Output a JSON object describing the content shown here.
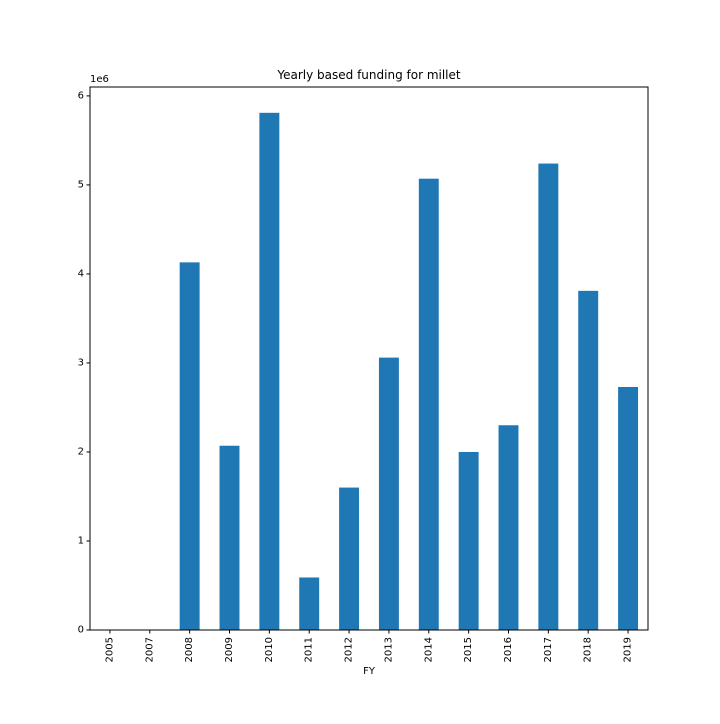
{
  "chart_data": {
    "type": "bar",
    "title": "Yearly based funding for millet",
    "xlabel": "FY",
    "ylabel": "",
    "y_offset_label": "1e6",
    "categories": [
      "2005",
      "2007",
      "2008",
      "2009",
      "2010",
      "2011",
      "2012",
      "2013",
      "2014",
      "2015",
      "2016",
      "2017",
      "2018",
      "2019"
    ],
    "values": [
      0,
      0,
      4130000,
      2070000,
      5810000,
      590000,
      1600000,
      3060000,
      5070000,
      2000000,
      2300000,
      5240000,
      3810000,
      2730000
    ],
    "ylim": [
      0,
      6100000
    ],
    "yticks": [
      0,
      1000000,
      2000000,
      3000000,
      4000000,
      5000000,
      6000000
    ],
    "ytick_labels": [
      "0",
      "1",
      "2",
      "3",
      "4",
      "5",
      "6"
    ],
    "grid": false,
    "colors": {
      "bar": "#1f77b4",
      "axis": "#000000",
      "background": "#ffffff"
    }
  }
}
